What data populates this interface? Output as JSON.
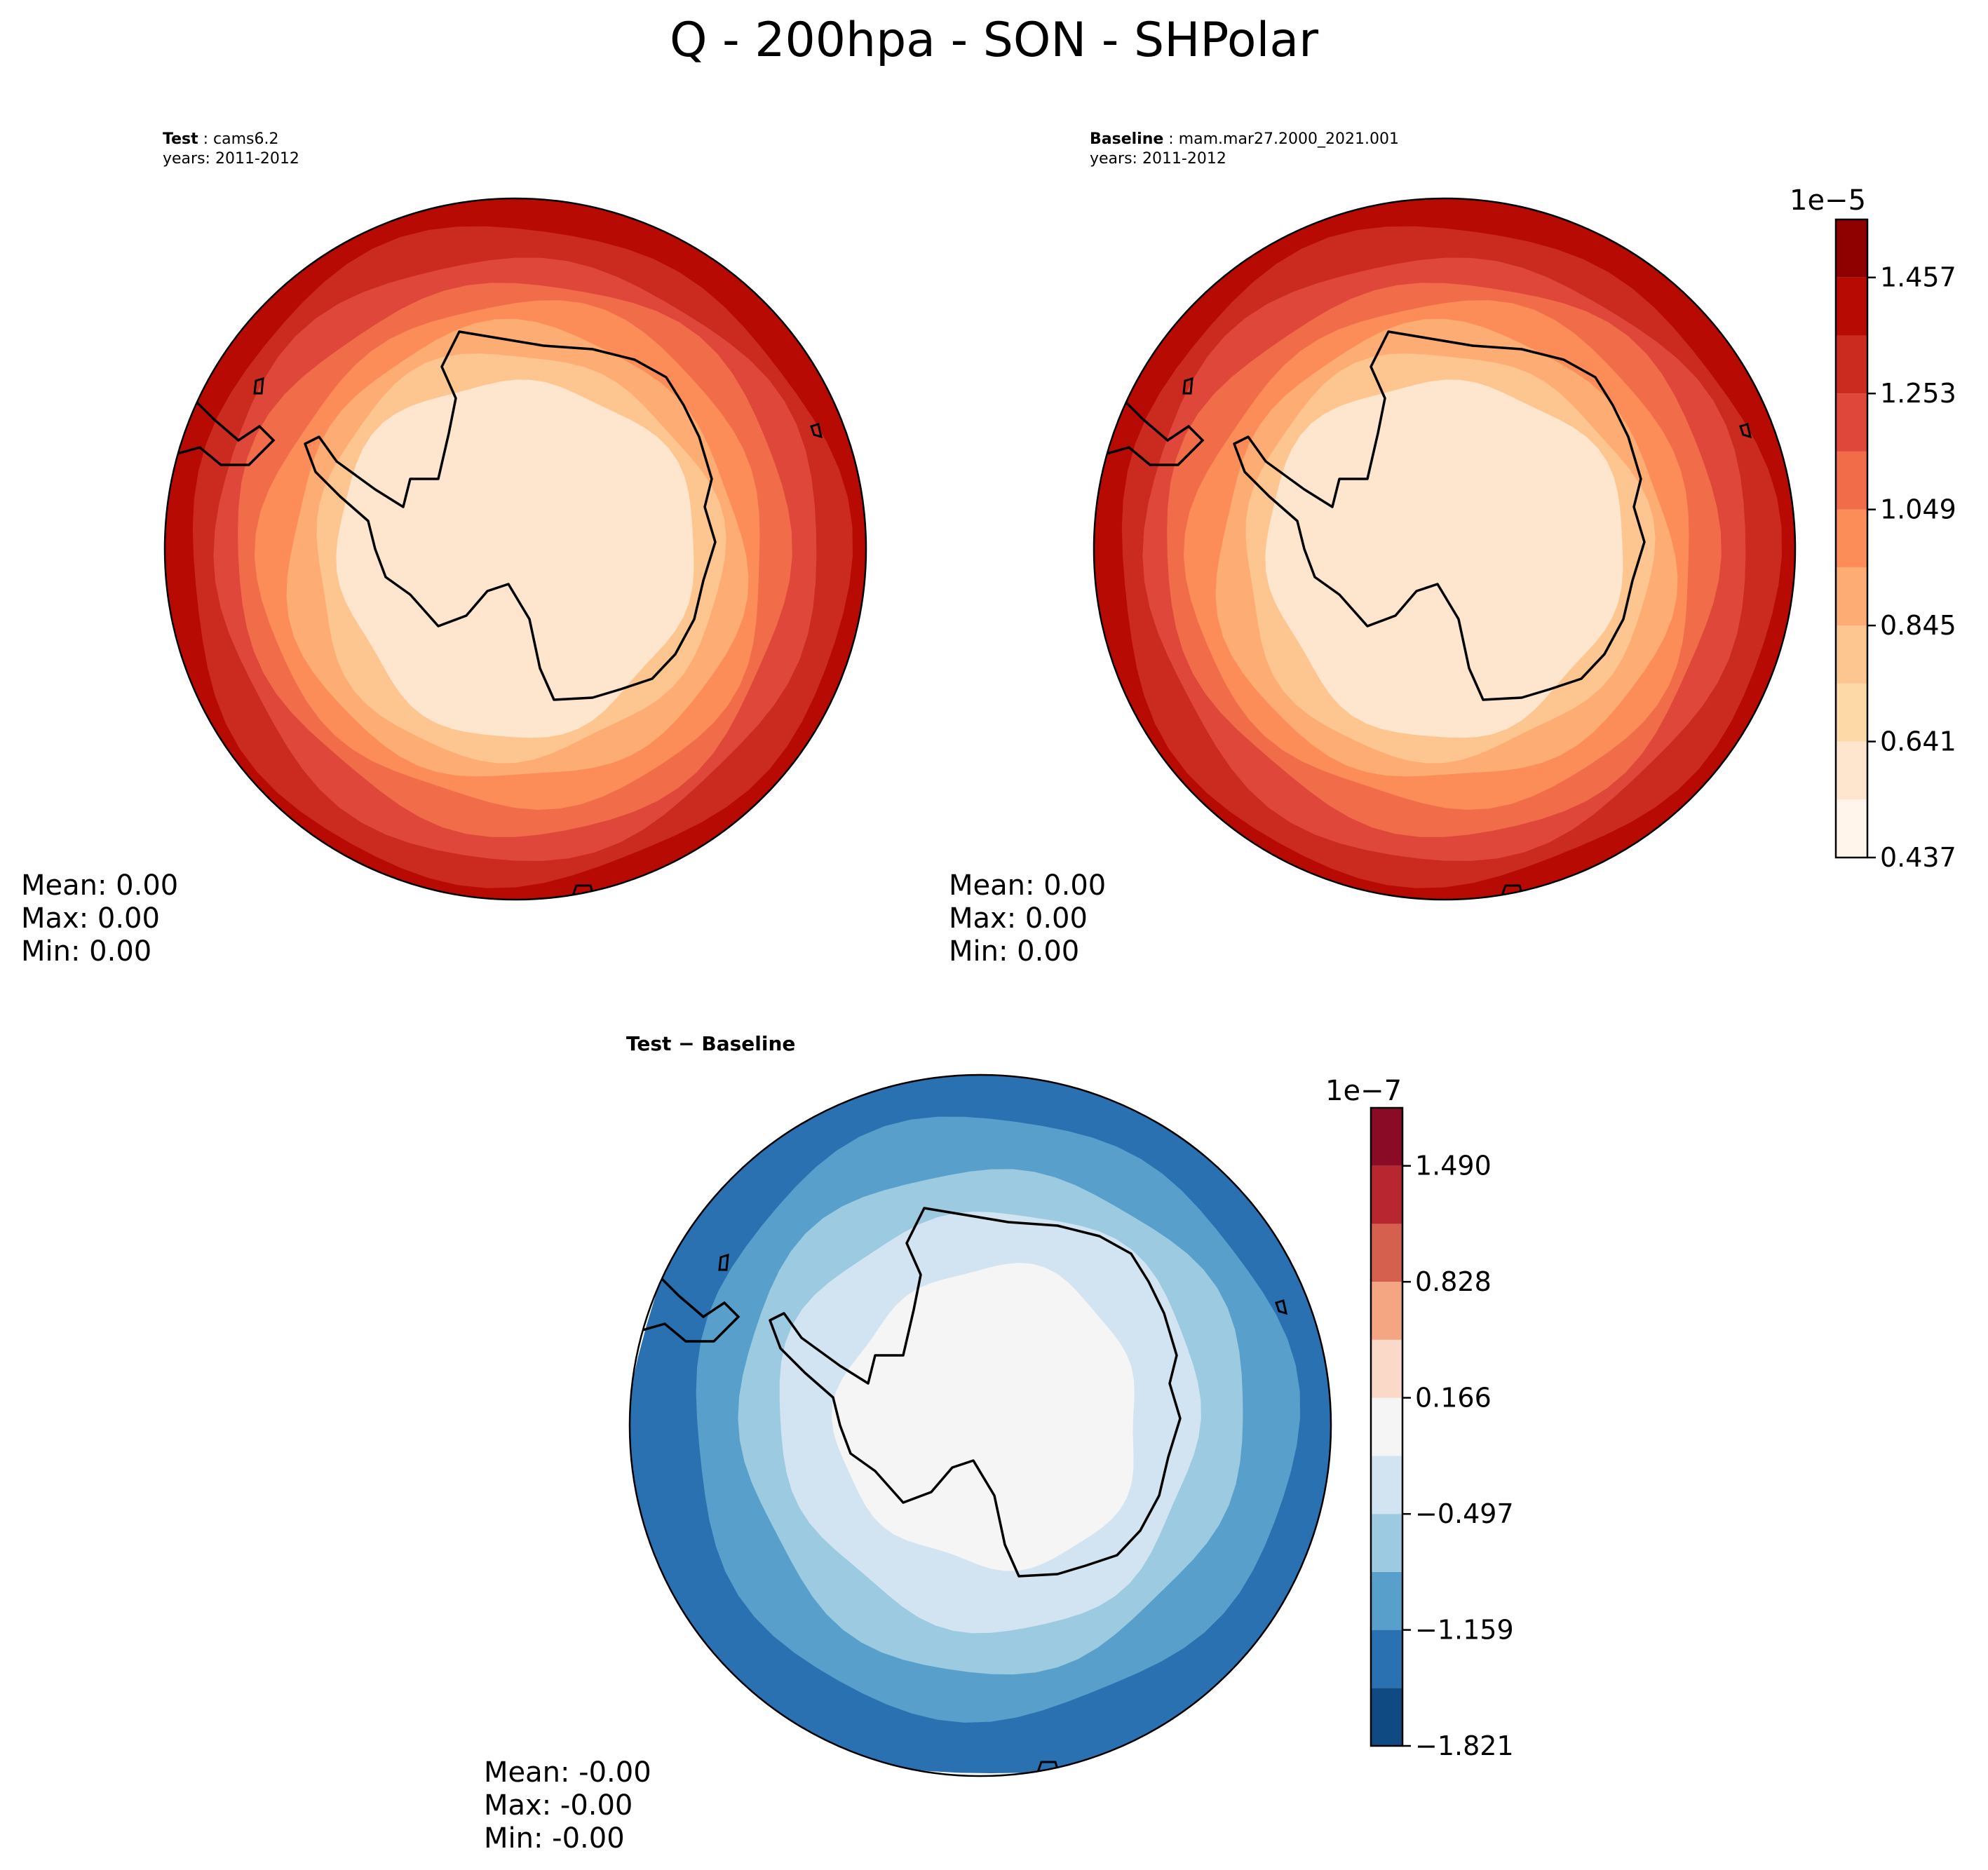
{
  "title": "Q - 200hpa - SON - SHPolar",
  "panels": {
    "test": {
      "label": "Test",
      "case": "cams6.2",
      "years": "years: 2011-2012",
      "stats": {
        "mean": "Mean:  0.00",
        "max": "Max:  0.00",
        "min": "Min:  0.00"
      }
    },
    "baseline": {
      "label": "Baseline",
      "case": "mam.mar27.2000_2021.001",
      "years": "years: 2011-2012",
      "stats": {
        "mean": "Mean:  0.00",
        "max": "Max:  0.00",
        "min": "Min:  0.00"
      }
    },
    "diff": {
      "label": "Test − Baseline",
      "stats": {
        "mean": "Mean: -0.00",
        "max": "Max: -0.00",
        "min": "Min: -0.00"
      }
    }
  },
  "chart_data": [
    {
      "type": "heatmap",
      "name": "Test",
      "projection": "south-polar-stereographic",
      "variable": "Q",
      "level": "200hpa",
      "season": "SON",
      "scale_exponent": "1e−5",
      "levels": [
        0.437,
        0.539,
        0.641,
        0.743,
        0.845,
        0.947,
        1.049,
        1.151,
        1.253,
        1.355,
        1.457,
        1.559
      ],
      "colors": [
        "#fff5eb",
        "#fee6ce",
        "#fdd9a8",
        "#fdc58f",
        "#fdad73",
        "#fc8d59",
        "#f16c49",
        "#e0473b",
        "#cb2a1f",
        "#b60a03",
        "#8f0000"
      ],
      "pattern": "values increase from the pole toward lower latitudes; lowest over Antarctica"
    },
    {
      "type": "heatmap",
      "name": "Baseline",
      "projection": "south-polar-stereographic",
      "variable": "Q",
      "level": "200hpa",
      "season": "SON",
      "scale_exponent": "1e−5",
      "levels": [
        0.437,
        0.539,
        0.641,
        0.743,
        0.845,
        0.947,
        1.049,
        1.151,
        1.253,
        1.355,
        1.457,
        1.559
      ],
      "colors": [
        "#fff5eb",
        "#fee6ce",
        "#fdd9a8",
        "#fdc58f",
        "#fdad73",
        "#fc8d59",
        "#f16c49",
        "#e0473b",
        "#cb2a1f",
        "#b60a03",
        "#8f0000"
      ],
      "pattern": "values increase from the pole toward lower latitudes; lowest over Antarctica"
    },
    {
      "type": "heatmap",
      "name": "Test − Baseline",
      "projection": "south-polar-stereographic",
      "scale_exponent": "1e−7",
      "levels": [
        -1.821,
        -1.49,
        -1.159,
        -0.828,
        -0.497,
        -0.166,
        0.166,
        0.497,
        0.828,
        1.159,
        1.49,
        1.821
      ],
      "colors": [
        "#0f4a82",
        "#2a71b2",
        "#589fcb",
        "#9bcae1",
        "#d2e4f1",
        "#f5f5f5",
        "#fbd9c8",
        "#f4a582",
        "#d5604d",
        "#b8262f",
        "#8a0b25"
      ],
      "pattern": "near zero over Antarctica, increasingly negative toward lower latitudes"
    }
  ],
  "colorbars": {
    "main": {
      "exponent": "1e−5",
      "ticks": [
        "0.437",
        "0.641",
        "0.845",
        "1.049",
        "1.253",
        "1.457"
      ],
      "tick_values": [
        0.437,
        0.641,
        0.845,
        1.049,
        1.253,
        1.457
      ]
    },
    "diff": {
      "exponent": "1e−7",
      "ticks": [
        "−1.821",
        "−1.159",
        "−0.497",
        "0.166",
        "0.828",
        "1.490"
      ],
      "tick_values": [
        -1.821,
        -1.159,
        -0.497,
        0.166,
        0.828,
        1.49
      ]
    }
  }
}
